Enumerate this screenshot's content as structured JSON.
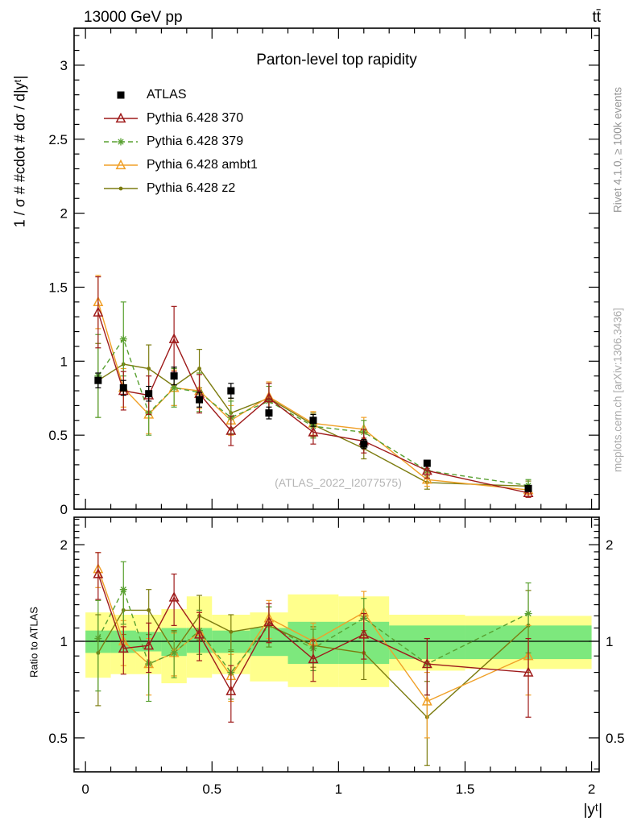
{
  "header": {
    "left": "13000 GeV pp",
    "right": "tt̄"
  },
  "side_notes": {
    "rivet": "Rivet 4.1.0, ≥ 100k events",
    "mcplots": "mcplots.cern.ch [arXiv:1306.3436]"
  },
  "watermark": "(ATLAS_2022_I2077575)",
  "chart_data": {
    "type": "line",
    "title": "Parton-level top rapidity",
    "xlabel": "|yᵗ|",
    "ylabel": "1 / σ # #cdot # dσ / d|yᵗ|",
    "ratio_ylabel": "Ratio to ATLAS",
    "x": [
      0.05,
      0.15,
      0.25,
      0.35,
      0.45,
      0.575,
      0.725,
      0.9,
      1.1,
      1.35,
      1.75
    ],
    "bin_edges": [
      0,
      0.1,
      0.2,
      0.3,
      0.4,
      0.5,
      0.65,
      0.8,
      1.0,
      1.2,
      1.5,
      2.0
    ],
    "x_axis": {
      "min": -0.045,
      "max": 2.03,
      "minor_step": 0.1,
      "major_ticks": [
        0,
        0.5,
        1,
        1.5,
        2
      ],
      "labels": [
        "0",
        "0.5",
        "1",
        "1.5",
        "2"
      ]
    },
    "main_axis": {
      "min": 0,
      "max": 3.25,
      "minor_step": 0.1,
      "major_ticks": [
        0,
        0.5,
        1,
        1.5,
        2,
        2.5,
        3
      ],
      "labels": [
        "0",
        "0.5",
        "1",
        "1.5",
        "2",
        "2.5",
        "3"
      ]
    },
    "ratio_axis": {
      "min": 0.392,
      "max": 2.435,
      "scale": "log",
      "major_ticks": [
        0.5,
        1,
        2
      ],
      "labels": [
        "0.5",
        "1",
        "2"
      ]
    },
    "reference_line": 1.0,
    "series": [
      {
        "id": "atlas",
        "name": "ATLAS",
        "kind": "data",
        "marker": "square",
        "color": "#000000",
        "line": false,
        "values": [
          0.87,
          0.82,
          0.78,
          0.9,
          0.74,
          0.8,
          0.65,
          0.6,
          0.44,
          0.31,
          0.14
        ],
        "errors": [
          0.05,
          0.05,
          0.05,
          0.06,
          0.05,
          0.05,
          0.04,
          0.04,
          0.03,
          0.02,
          0.012
        ]
      },
      {
        "id": "py370",
        "name": "Pythia 6.428 370",
        "kind": "mc",
        "marker": "triangle",
        "color": "#9e1a1a",
        "dash": "",
        "values": [
          1.33,
          0.8,
          0.77,
          1.15,
          0.78,
          0.53,
          0.75,
          0.52,
          0.46,
          0.26,
          0.11
        ],
        "errors": [
          0.24,
          0.13,
          0.13,
          0.22,
          0.13,
          0.1,
          0.1,
          0.08,
          0.08,
          0.05,
          0.03
        ],
        "ratio": [
          1.62,
          0.95,
          0.97,
          1.37,
          1.05,
          0.7,
          1.15,
          0.88,
          1.05,
          0.85,
          0.8
        ],
        "ratio_errors": [
          0.27,
          0.16,
          0.17,
          0.25,
          0.18,
          0.14,
          0.16,
          0.13,
          0.17,
          0.17,
          0.22
        ]
      },
      {
        "id": "py379",
        "name": "Pythia 6.428 379",
        "kind": "mc",
        "marker": "star",
        "color": "#58a030",
        "dash": "6,4",
        "values": [
          0.9,
          1.15,
          0.65,
          0.82,
          0.79,
          0.62,
          0.73,
          0.56,
          0.52,
          0.26,
          0.16
        ],
        "errors": [
          0.28,
          0.25,
          0.15,
          0.13,
          0.13,
          0.11,
          0.1,
          0.08,
          0.08,
          0.05,
          0.04
        ],
        "ratio": [
          1.02,
          1.45,
          0.85,
          0.92,
          1.08,
          0.8,
          1.12,
          0.95,
          1.18,
          0.85,
          1.22
        ],
        "ratio_errors": [
          0.32,
          0.32,
          0.2,
          0.15,
          0.17,
          0.14,
          0.16,
          0.14,
          0.18,
          0.17,
          0.3
        ]
      },
      {
        "id": "ambt1",
        "name": "Pythia 6.428 ambt1",
        "kind": "mc",
        "marker": "triangle",
        "color": "#f0a028",
        "dash": "",
        "values": [
          1.4,
          0.82,
          0.64,
          0.82,
          0.8,
          0.6,
          0.76,
          0.58,
          0.54,
          0.2,
          0.13
        ],
        "errors": [
          0.18,
          0.13,
          0.13,
          0.12,
          0.12,
          0.1,
          0.1,
          0.08,
          0.08,
          0.045,
          0.03
        ],
        "ratio": [
          1.68,
          1.0,
          0.85,
          0.92,
          1.07,
          0.78,
          1.18,
          1.0,
          1.23,
          0.65,
          0.9
        ],
        "ratio_errors": [
          0.21,
          0.16,
          0.17,
          0.14,
          0.16,
          0.13,
          0.16,
          0.14,
          0.2,
          0.15,
          0.22
        ]
      },
      {
        "id": "z2",
        "name": "Pythia 6.428 z2",
        "kind": "mc",
        "marker": "dot",
        "color": "#7c7c10",
        "dash": "",
        "values": [
          0.87,
          0.98,
          0.95,
          0.83,
          0.95,
          0.65,
          0.75,
          0.57,
          0.41,
          0.18,
          0.155
        ],
        "errors": [
          0.25,
          0.16,
          0.16,
          0.13,
          0.13,
          0.1,
          0.1,
          0.08,
          0.07,
          0.045,
          0.035
        ],
        "ratio": [
          0.92,
          1.25,
          1.25,
          0.93,
          1.2,
          1.07,
          1.12,
          0.97,
          0.92,
          0.58,
          1.12
        ],
        "ratio_errors": [
          0.29,
          0.2,
          0.2,
          0.15,
          0.19,
          0.14,
          0.16,
          0.14,
          0.16,
          0.17,
          0.32
        ]
      }
    ],
    "ratio_bands": {
      "edges": [
        0,
        0.1,
        0.2,
        0.3,
        0.4,
        0.5,
        0.65,
        0.8,
        1.0,
        1.2,
        1.5,
        2.0
      ],
      "outer_color": "#ffff8c",
      "inner_color": "#7de87d",
      "outer": [
        [
          0.77,
          1.23
        ],
        [
          0.79,
          1.21
        ],
        [
          0.79,
          1.21
        ],
        [
          0.74,
          1.26
        ],
        [
          0.77,
          1.38
        ],
        [
          0.79,
          1.21
        ],
        [
          0.75,
          1.23
        ],
        [
          0.72,
          1.4
        ],
        [
          0.72,
          1.38
        ],
        [
          0.81,
          1.21
        ],
        [
          0.82,
          1.2
        ]
      ],
      "inner": [
        [
          0.92,
          1.08
        ],
        [
          0.92,
          1.08
        ],
        [
          0.93,
          1.07
        ],
        [
          0.9,
          1.1
        ],
        [
          0.92,
          1.1
        ],
        [
          0.92,
          1.08
        ],
        [
          0.9,
          1.1
        ],
        [
          0.85,
          1.15
        ],
        [
          0.85,
          1.15
        ],
        [
          0.88,
          1.12
        ],
        [
          0.88,
          1.12
        ]
      ]
    }
  }
}
